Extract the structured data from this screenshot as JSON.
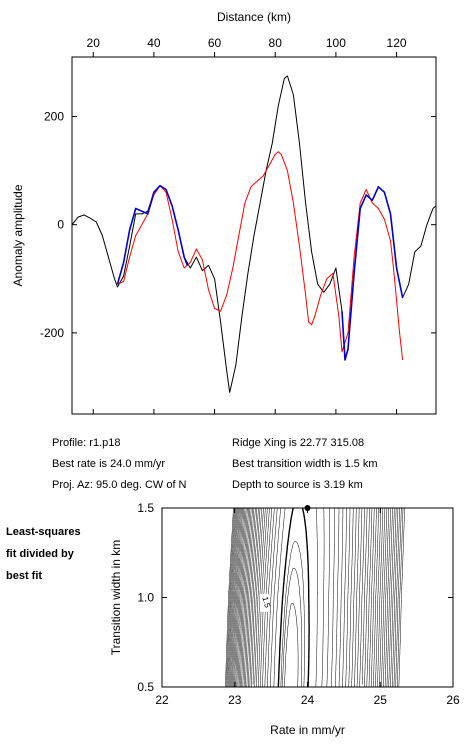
{
  "info": {
    "profile": "Profile: r1.p18",
    "best_rate": "Best rate is 24.0 mm/yr",
    "proj_az": "Proj. Az: 95.0 deg. CW of N",
    "ridge_xing": "Ridge Xing is 22.77 315.08",
    "best_width": "Best transition width is 1.5 km",
    "depth": "Depth to source is   3.19 km"
  },
  "side_note": [
    "Least-squares",
    "fit divided by",
    "best fit"
  ],
  "colors": {
    "observed": "#000000",
    "model": "#ff0000",
    "fit_window": "#0000cc"
  },
  "chart_data": [
    {
      "type": "line",
      "title": "",
      "xlabel": "Distance (km)",
      "ylabel": "Anomaly amplitude",
      "xlim": [
        13,
        133
      ],
      "ylim": [
        -350,
        310
      ],
      "xticks": [
        20,
        40,
        60,
        80,
        100,
        120
      ],
      "yticks": [
        -200,
        0,
        200
      ],
      "grid": false,
      "series": [
        {
          "role": "observed",
          "color": "#000000",
          "points": [
            [
              13,
              0
            ],
            [
              15,
              14
            ],
            [
              17,
              18
            ],
            [
              19,
              12
            ],
            [
              21,
              5
            ],
            [
              23,
              -20
            ],
            [
              25,
              -60
            ],
            [
              27,
              -100
            ],
            [
              28,
              -115
            ],
            [
              30,
              -95
            ],
            [
              32,
              -40
            ],
            [
              34,
              20
            ],
            [
              36,
              20
            ],
            [
              38,
              25
            ],
            [
              40,
              60
            ],
            [
              42,
              72
            ],
            [
              44,
              65
            ],
            [
              46,
              35
            ],
            [
              48,
              -10
            ],
            [
              50,
              -60
            ],
            [
              52,
              -80
            ],
            [
              54,
              -60
            ],
            [
              56,
              -85
            ],
            [
              58,
              -75
            ],
            [
              60,
              -100
            ],
            [
              62,
              -180
            ],
            [
              64,
              -270
            ],
            [
              65,
              -310
            ],
            [
              67,
              -260
            ],
            [
              69,
              -170
            ],
            [
              71,
              -90
            ],
            [
              73,
              -20
            ],
            [
              75,
              40
            ],
            [
              77,
              100
            ],
            [
              79,
              150
            ],
            [
              81,
              220
            ],
            [
              83,
              270
            ],
            [
              84,
              275
            ],
            [
              86,
              240
            ],
            [
              88,
              150
            ],
            [
              90,
              40
            ],
            [
              92,
              -50
            ],
            [
              94,
              -110
            ],
            [
              96,
              -125
            ],
            [
              98,
              -110
            ],
            [
              100,
              -80
            ],
            [
              102,
              -160
            ],
            [
              103,
              -250
            ],
            [
              104,
              -230
            ],
            [
              106,
              -90
            ],
            [
              108,
              30
            ],
            [
              110,
              55
            ],
            [
              112,
              45
            ],
            [
              114,
              70
            ],
            [
              116,
              60
            ],
            [
              118,
              20
            ],
            [
              120,
              -80
            ],
            [
              122,
              -135
            ],
            [
              124,
              -110
            ],
            [
              126,
              -50
            ],
            [
              128,
              -40
            ],
            [
              130,
              0
            ],
            [
              132,
              30
            ],
            [
              133,
              35
            ]
          ]
        },
        {
          "role": "model",
          "color": "#ff0000",
          "points": [
            [
              28,
              -110
            ],
            [
              30,
              -105
            ],
            [
              32,
              -60
            ],
            [
              34,
              -20
            ],
            [
              36,
              0
            ],
            [
              38,
              20
            ],
            [
              40,
              55
            ],
            [
              42,
              72
            ],
            [
              44,
              60
            ],
            [
              46,
              10
            ],
            [
              48,
              -50
            ],
            [
              50,
              -80
            ],
            [
              52,
              -70
            ],
            [
              54,
              -45
            ],
            [
              56,
              -65
            ],
            [
              58,
              -120
            ],
            [
              60,
              -155
            ],
            [
              62,
              -160
            ],
            [
              64,
              -130
            ],
            [
              66,
              -80
            ],
            [
              68,
              -20
            ],
            [
              70,
              40
            ],
            [
              72,
              70
            ],
            [
              74,
              80
            ],
            [
              76,
              90
            ],
            [
              78,
              110
            ],
            [
              80,
              130
            ],
            [
              81,
              135
            ],
            [
              82,
              130
            ],
            [
              84,
              100
            ],
            [
              86,
              40
            ],
            [
              88,
              -40
            ],
            [
              90,
              -130
            ],
            [
              91,
              -180
            ],
            [
              92,
              -185
            ],
            [
              93,
              -170
            ],
            [
              95,
              -130
            ],
            [
              97,
              -100
            ],
            [
              99,
              -90
            ],
            [
              101,
              -170
            ],
            [
              102,
              -235
            ],
            [
              104,
              -200
            ],
            [
              106,
              -60
            ],
            [
              108,
              40
            ],
            [
              110,
              65
            ],
            [
              112,
              40
            ],
            [
              114,
              30
            ],
            [
              116,
              10
            ],
            [
              118,
              -30
            ],
            [
              119,
              -80
            ],
            [
              121,
              -200
            ],
            [
              122,
              -250
            ]
          ]
        },
        {
          "role": "fit_window",
          "color": "#0000cc",
          "points": [
            [
              28,
              -110
            ],
            [
              30,
              -70
            ],
            [
              32,
              -10
            ],
            [
              34,
              30
            ],
            [
              36,
              25
            ],
            [
              38,
              20
            ],
            [
              40,
              60
            ],
            [
              42,
              72
            ],
            [
              44,
              65
            ],
            [
              46,
              35
            ],
            [
              48,
              -10
            ],
            [
              50,
              -60
            ],
            [
              51,
              -75
            ]
          ]
        },
        {
          "role": "fit_window",
          "color": "#0000cc",
          "points": [
            [
              102,
              -160
            ],
            [
              103,
              -250
            ],
            [
              104,
              -230
            ],
            [
              106,
              -90
            ],
            [
              108,
              30
            ],
            [
              110,
              55
            ],
            [
              112,
              45
            ],
            [
              114,
              70
            ],
            [
              116,
              60
            ],
            [
              118,
              20
            ],
            [
              120,
              -80
            ],
            [
              122,
              -135
            ]
          ]
        }
      ]
    },
    {
      "type": "contour",
      "title": "",
      "xlabel": "Rate in mm/yr",
      "ylabel": "Transition width in km",
      "xlim": [
        22,
        26
      ],
      "ylim": [
        0.5,
        1.5
      ],
      "xticks": [
        22,
        23,
        24,
        25,
        26
      ],
      "yticks": [
        0.5,
        1.0,
        1.5
      ],
      "contour_label": "1.5",
      "contour_label_at": [
        23.4,
        0.97
      ],
      "best_fit_marker": [
        24.0,
        1.5
      ],
      "valley": [
        [
          23.85,
          1.5
        ],
        [
          23.82,
          1.25
        ],
        [
          23.79,
          1.0
        ],
        [
          23.77,
          0.75
        ],
        [
          23.75,
          0.5
        ]
      ],
      "highlighted_level": 1.5,
      "levels": [
        1.1,
        1.2,
        1.3,
        1.5,
        2,
        2.5,
        3,
        3.5,
        4,
        4.5,
        5,
        5.5,
        6,
        6.5,
        7,
        7.5,
        8,
        8.5,
        9,
        9.5,
        10,
        10.5,
        11,
        11.5,
        12,
        12.5,
        13,
        13.5,
        14,
        14.5,
        15,
        15.5,
        16,
        16.5,
        17,
        17.5,
        18
      ]
    }
  ]
}
